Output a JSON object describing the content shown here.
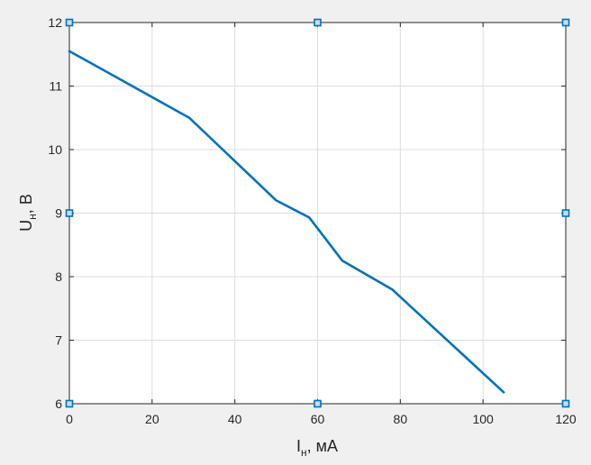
{
  "chart_data": {
    "type": "line",
    "title": "",
    "xlabel": {
      "main": "I",
      "sub": "н",
      "rest": ", мА"
    },
    "ylabel": {
      "main": "U",
      "sub": "н",
      "rest": ", В"
    },
    "xlim": [
      0,
      120
    ],
    "ylim": [
      6,
      12
    ],
    "xticks": [
      0,
      20,
      40,
      60,
      80,
      100,
      120
    ],
    "yticks": [
      6,
      7,
      8,
      9,
      10,
      11,
      12
    ],
    "grid": true,
    "series": [
      {
        "color": "#0072bd",
        "x": [
          0,
          29,
          50,
          58,
          66,
          78,
          105
        ],
        "y": [
          11.55,
          10.5,
          9.2,
          8.93,
          8.25,
          7.8,
          6.18
        ]
      }
    ],
    "markers": {
      "color": "#0072bd",
      "fill": "#c8dcea",
      "points": [
        [
          0,
          12
        ],
        [
          60,
          12
        ],
        [
          120,
          12
        ],
        [
          0,
          9
        ],
        [
          120,
          9
        ],
        [
          0,
          6
        ],
        [
          60,
          6
        ],
        [
          120,
          6
        ]
      ]
    }
  }
}
